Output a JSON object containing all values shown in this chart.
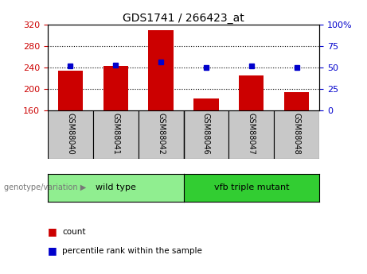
{
  "title": "GDS1741 / 266423_at",
  "samples": [
    "GSM88040",
    "GSM88041",
    "GSM88042",
    "GSM88046",
    "GSM88047",
    "GSM88048"
  ],
  "counts": [
    235,
    243,
    310,
    183,
    225,
    195
  ],
  "percentiles": [
    52,
    53,
    57,
    50,
    52,
    50
  ],
  "y_min": 160,
  "y_max": 320,
  "y_ticks": [
    160,
    200,
    240,
    280,
    320
  ],
  "y_right_ticks": [
    0,
    25,
    50,
    75,
    100
  ],
  "y_right_labels": [
    "0",
    "25",
    "50",
    "75",
    "100%"
  ],
  "bar_color": "#cc0000",
  "dot_color": "#0000cc",
  "bar_width": 0.55,
  "group_wt_label": "wild type",
  "group_mut_label": "vfb triple mutant",
  "group_color_wt": "#90ee90",
  "group_color_mut": "#32cd32",
  "legend_count_label": "count",
  "legend_percentile_label": "percentile rank within the sample",
  "background_color": "#ffffff",
  "plot_bg_color": "#ffffff",
  "sample_cell_color": "#c8c8c8",
  "grid_color": "#000000",
  "title_color": "#000000",
  "left_tick_color": "#cc0000",
  "right_tick_color": "#0000cc",
  "genotype_label": "genotype/variation"
}
